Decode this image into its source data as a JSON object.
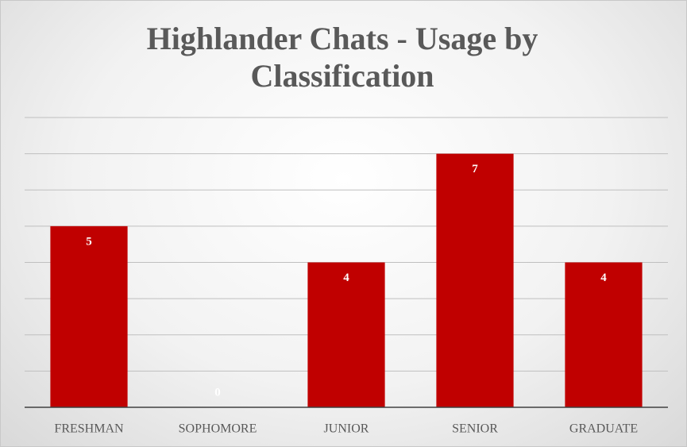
{
  "chart_data": {
    "type": "bar",
    "title": "Highlander Chats - Usage by Classification",
    "categories": [
      "FRESHMAN",
      "SOPHOMORE",
      "JUNIOR",
      "SENIOR",
      "GRADUATE"
    ],
    "values": [
      5,
      0,
      4,
      7,
      4
    ],
    "color": "#c00000",
    "ylim": [
      0,
      8
    ],
    "yticks": [
      0,
      1,
      2,
      3,
      4,
      5,
      6,
      7,
      8
    ],
    "grid": true
  }
}
